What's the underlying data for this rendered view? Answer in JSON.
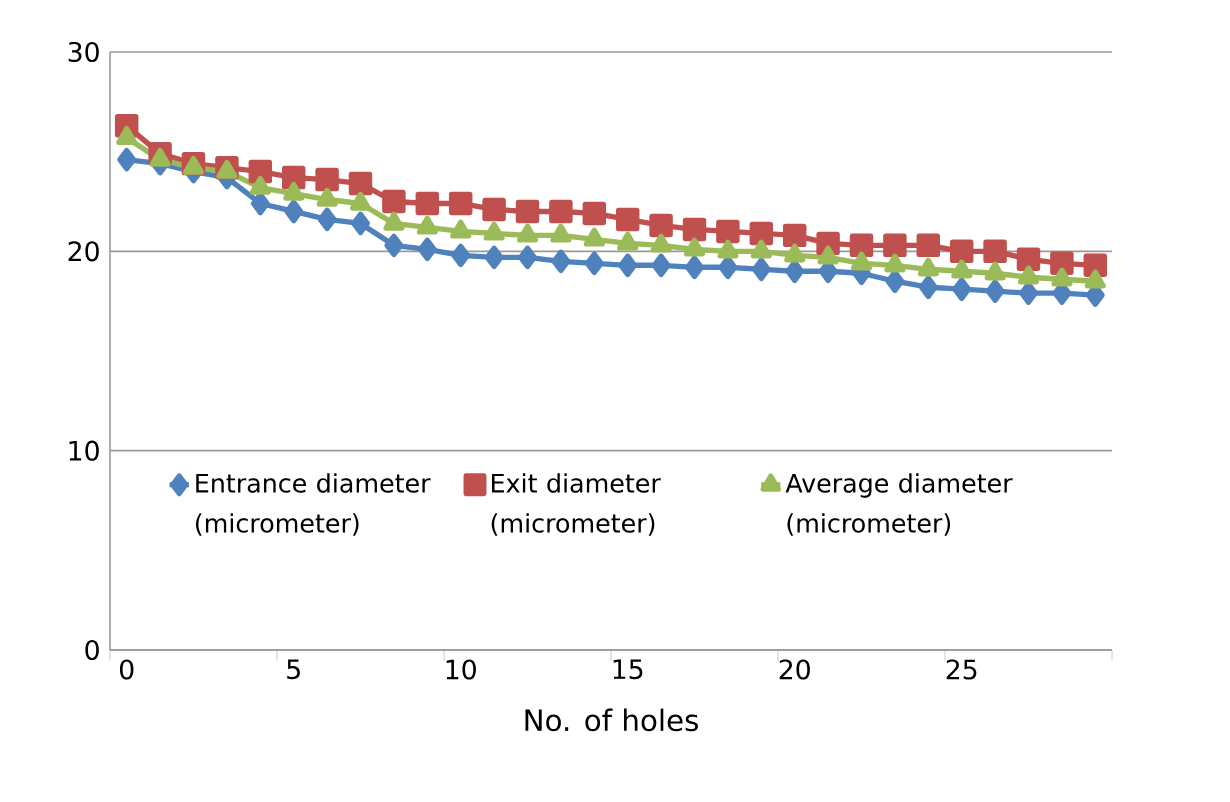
{
  "chart_data": {
    "type": "line",
    "xlabel": "No. of holes",
    "categories": [
      "0",
      null,
      null,
      null,
      null,
      "5",
      null,
      null,
      null,
      null,
      "10",
      null,
      null,
      null,
      null,
      "15",
      null,
      null,
      null,
      null,
      "20",
      null,
      null,
      null,
      null,
      "25",
      null,
      null,
      null,
      null
    ],
    "ylim": [
      0,
      30
    ],
    "yticks": [
      0,
      10,
      20,
      30
    ],
    "grid": "y",
    "legend": "bottom",
    "series": [
      {
        "name": "Entrance diameter (micrometer)",
        "color": "#4f81bd",
        "marker": "diamond",
        "values": [
          24.6,
          24.4,
          24.0,
          23.7,
          22.4,
          22.0,
          21.6,
          21.4,
          20.3,
          20.1,
          19.8,
          19.7,
          19.7,
          19.5,
          19.4,
          19.3,
          19.3,
          19.2,
          19.2,
          19.1,
          19.0,
          19.0,
          18.9,
          18.5,
          18.2,
          18.1,
          18.0,
          17.9,
          17.9,
          17.8
        ]
      },
      {
        "name": "Exit diameter (micrometer)",
        "color": "#c0504d",
        "marker": "square",
        "values": [
          26.3,
          24.9,
          24.4,
          24.2,
          24.0,
          23.7,
          23.6,
          23.4,
          22.5,
          22.4,
          22.4,
          22.1,
          22.0,
          22.0,
          21.9,
          21.6,
          21.3,
          21.1,
          21.0,
          20.9,
          20.8,
          20.4,
          20.3,
          20.3,
          20.3,
          20.0,
          20.0,
          19.6,
          19.4,
          19.3
        ]
      },
      {
        "name": "Average diameter (micrometer)",
        "color": "#9bbb59",
        "marker": "triangle",
        "values": [
          25.7,
          24.6,
          24.2,
          24.0,
          23.2,
          22.9,
          22.6,
          22.4,
          21.4,
          21.2,
          21.0,
          20.9,
          20.8,
          20.8,
          20.6,
          20.4,
          20.3,
          20.1,
          20.0,
          20.0,
          19.8,
          19.7,
          19.4,
          19.3,
          19.1,
          19.0,
          18.9,
          18.7,
          18.6,
          18.5
        ]
      }
    ]
  }
}
